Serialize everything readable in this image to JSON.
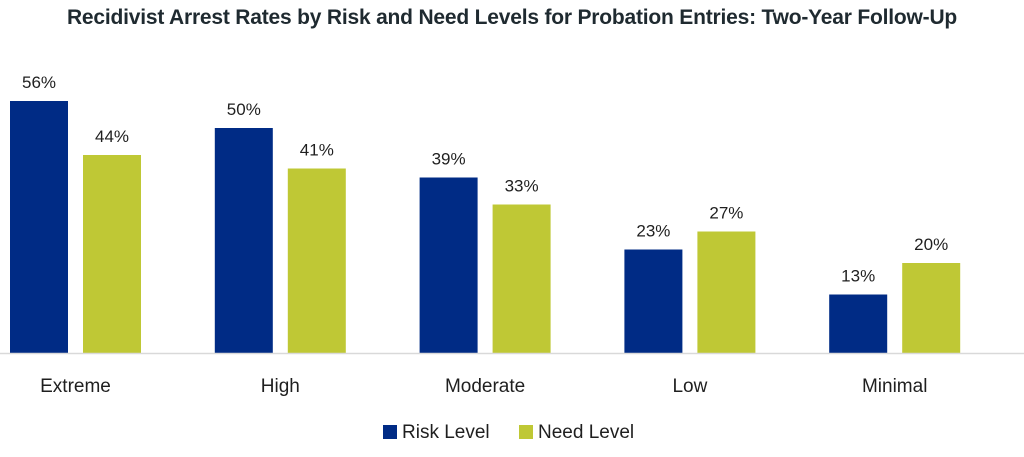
{
  "chart_data": {
    "type": "bar",
    "title": "Recidivist Arrest Rates by Risk and Need Levels for Probation Entries: Two-Year Follow-Up",
    "categories": [
      "Extreme",
      "High",
      "Moderate",
      "Low",
      "Minimal"
    ],
    "series": [
      {
        "name": "Risk Level",
        "color": "#002b85",
        "values": [
          56,
          50,
          39,
          23,
          13
        ],
        "labels": [
          "56%",
          "50%",
          "39%",
          "23%",
          "13%"
        ]
      },
      {
        "name": "Need Level",
        "color": "#bfc835",
        "values": [
          44,
          41,
          33,
          27,
          20
        ],
        "labels": [
          "44%",
          "41%",
          "33%",
          "27%",
          "20%"
        ]
      }
    ],
    "ylim": [
      0,
      56
    ],
    "grid": false,
    "legend_position": "bottom-center",
    "axis_color": "#d9d9d9"
  }
}
